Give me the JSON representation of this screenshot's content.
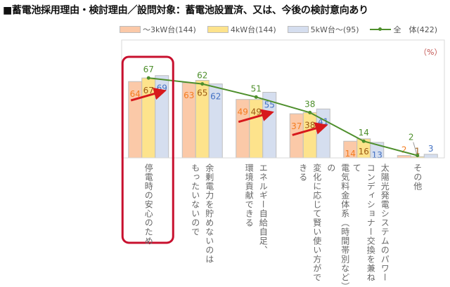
{
  "title": "■蓄電池採用理由・検討理由／設問対象：蓄電池設置済、又は、今後の検討意向あり",
  "chart_data": {
    "type": "bar",
    "unit_label": "（%）",
    "categories": [
      [
        "停電時の安心のため"
      ],
      [
        "余剰電力を貯めないのは",
        "もったいないので"
      ],
      [
        "エネルギー自給自足、",
        "環境貢献できる"
      ],
      [
        "電気料金体系（時間帯別など）の",
        "変化に応じて賢い使い方ができる"
      ],
      [
        "太陽光発電システムのパワー",
        "コンディショナー交換を兼ねて"
      ],
      [
        "その他"
      ]
    ],
    "series": [
      {
        "name": "〜3kW台(144)",
        "type": "bar",
        "color": "#fbc9a8",
        "label_color": "#f47c20",
        "values": [
          64,
          63,
          49,
          37,
          14,
          2
        ]
      },
      {
        "name": "4kW台(144)",
        "type": "bar",
        "color": "#fde38c",
        "label_color": "#9c5a14",
        "values": [
          67,
          65,
          49,
          38,
          16,
          1
        ]
      },
      {
        "name": "5kW台〜(95)",
        "type": "bar",
        "color": "#d5deef",
        "label_color": "#4472c4",
        "values": [
          69,
          62,
          55,
          41,
          13,
          3
        ]
      },
      {
        "name": "全　体(422)",
        "type": "line",
        "color": "#4e8f2c",
        "label_color": "#4e8f2c",
        "values": [
          67,
          62,
          51,
          38,
          14,
          2
        ]
      }
    ],
    "ylim": [
      0,
      100
    ],
    "grid": false,
    "legend": "top",
    "highlight_category": 0,
    "highlight_color": "#c8102e",
    "trend_arrows_categories": [
      0,
      2,
      3
    ]
  }
}
